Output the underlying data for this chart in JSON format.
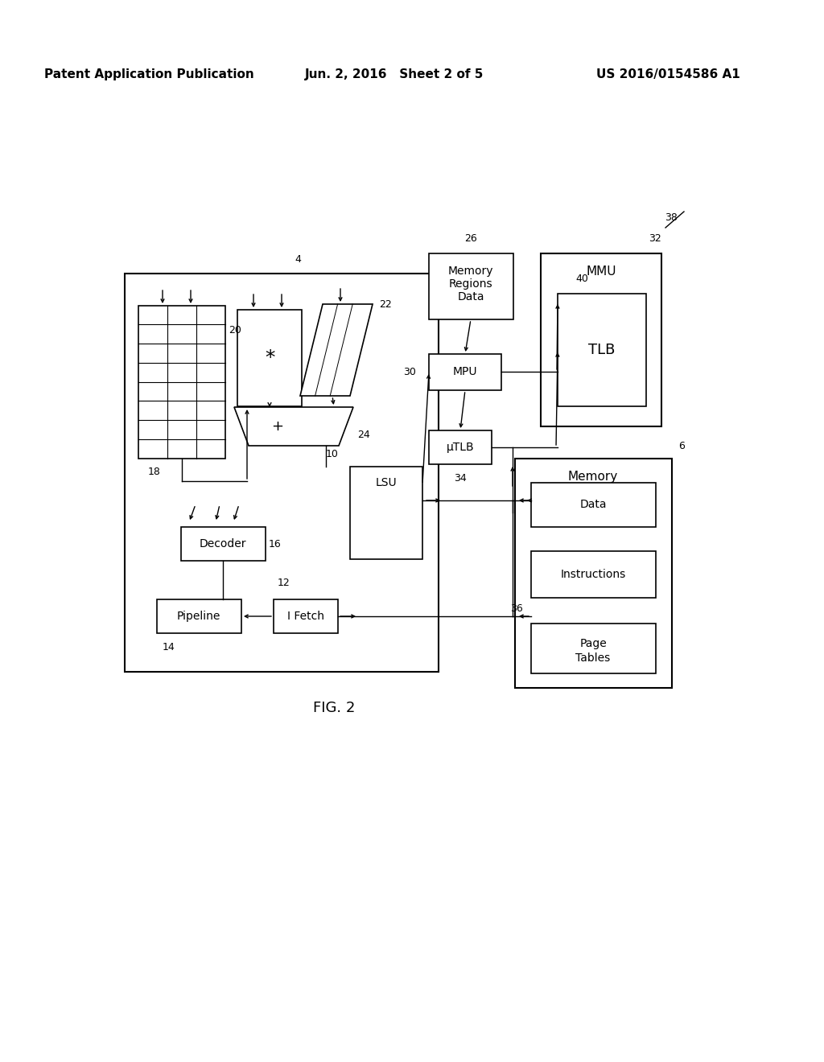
{
  "header_left": "Patent Application Publication",
  "header_mid": "Jun. 2, 2016   Sheet 2 of 5",
  "header_right": "US 2016/0154586 A1",
  "fig_label": "FIG. 2",
  "background_color": "#ffffff",
  "line_color": "#000000",
  "text_color": "#000000",
  "font_size_header": 11,
  "font_size_small": 9,
  "font_size_box": 10,
  "font_size_fig": 13
}
